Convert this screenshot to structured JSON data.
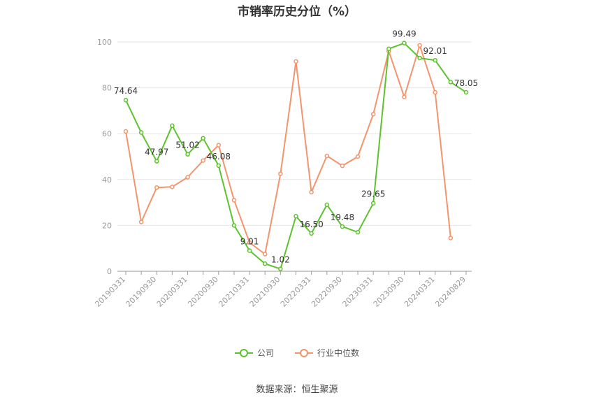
{
  "title": "市销率历史分位（%）",
  "source": "数据来源：恒生聚源",
  "colors": {
    "company": "#5ec22e",
    "industry": "#f4946c",
    "grid": "#e6e6e6",
    "axis": "#999999"
  },
  "chart_data": {
    "type": "line",
    "title": "市销率历史分位（%）",
    "xlabel": "",
    "ylabel": "",
    "ylim": [
      0,
      100
    ],
    "yticks": [
      0,
      20,
      40,
      60,
      80,
      100
    ],
    "grid": true,
    "legend_position": "bottom",
    "x": [
      "20190331",
      "20190630",
      "20190930",
      "20191231",
      "20200331",
      "20200630",
      "20200930",
      "20201231",
      "20210331",
      "20210630",
      "20210930",
      "20211231",
      "20220331",
      "20220630",
      "20220930",
      "20221231",
      "20230331",
      "20230630",
      "20230930",
      "20231231",
      "20240331",
      "20240630",
      "20240829"
    ],
    "x_tick_labels": [
      "20190331",
      "20190930",
      "20200331",
      "20200930",
      "20210331",
      "20210930",
      "20220331",
      "20220930",
      "20230331",
      "20230930",
      "20240331",
      "20240829"
    ],
    "series": [
      {
        "name": "公司",
        "key": "company",
        "values": [
          74.64,
          60.5,
          47.97,
          63.5,
          51.02,
          58.0,
          46.08,
          20.0,
          9.01,
          3.3,
          1.02,
          24.0,
          16.5,
          29.0,
          19.48,
          17.0,
          29.65,
          97.0,
          99.49,
          93.0,
          92.01,
          82.5,
          78.05
        ],
        "labels": {
          "0": "74.64",
          "2": "47.97",
          "4": "51.02",
          "6": "46.08",
          "8": "9.01",
          "10": "1.02",
          "12": "16.50",
          "14": "19.48",
          "16": "29.65",
          "18": "99.49",
          "20": "92.01",
          "22": "78.05"
        }
      },
      {
        "name": "行业中位数",
        "key": "industry",
        "values": [
          61.0,
          21.5,
          36.5,
          36.8,
          41.0,
          48.3,
          55.0,
          31.0,
          12.5,
          7.5,
          42.5,
          91.5,
          34.5,
          50.3,
          46.0,
          50.0,
          68.5,
          96.0,
          76.0,
          98.5,
          78.0,
          14.5,
          null
        ]
      }
    ]
  }
}
